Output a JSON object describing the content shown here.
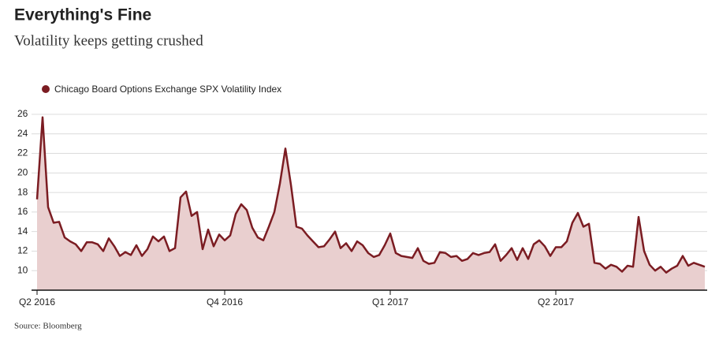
{
  "chart_data": {
    "type": "area",
    "title": "Everything's Fine",
    "subtitle": "Volatility keeps getting crushed",
    "source": "Source: Bloomberg",
    "legend": "top-left",
    "grid": true,
    "categories": [
      "Q2 2016",
      null,
      null,
      null,
      null,
      null,
      null,
      null,
      null,
      null,
      null,
      null,
      null,
      null,
      null,
      null,
      null,
      null,
      null,
      null,
      null,
      null,
      null,
      null,
      null,
      null,
      null,
      null,
      null,
      null,
      null,
      null,
      null,
      null,
      "Q4 2016",
      null,
      null,
      null,
      null,
      null,
      null,
      null,
      null,
      null,
      null,
      null,
      null,
      null,
      null,
      null,
      null,
      null,
      null,
      null,
      null,
      null,
      null,
      null,
      null,
      null,
      null,
      null,
      null,
      null,
      "Q1 2017",
      null,
      null,
      null,
      null,
      null,
      null,
      null,
      null,
      null,
      null,
      null,
      null,
      null,
      null,
      null,
      null,
      null,
      null,
      null,
      null,
      null,
      null,
      null,
      null,
      null,
      null,
      null,
      null,
      null,
      "Q2 2017",
      null,
      null,
      null,
      null,
      null,
      null,
      null,
      null,
      null,
      null,
      null,
      null,
      null,
      null,
      null,
      null,
      null,
      null,
      null,
      null,
      null,
      null,
      null,
      null,
      null,
      null,
      null
    ],
    "series": [
      {
        "name": "Chicago Board Options Exchange SPX Volatility Index",
        "color": "#7b1c22",
        "fill": "#e9cfcf",
        "values": [
          17.3,
          25.7,
          16.5,
          14.9,
          15.0,
          13.4,
          13.0,
          12.7,
          12.0,
          12.9,
          12.9,
          12.7,
          12.0,
          13.3,
          12.5,
          11.5,
          11.9,
          11.6,
          12.6,
          11.5,
          12.2,
          13.5,
          13.0,
          13.5,
          12.0,
          12.3,
          17.5,
          18.1,
          15.6,
          16.0,
          12.2,
          14.2,
          12.5,
          13.7,
          13.1,
          13.6,
          15.8,
          16.8,
          16.2,
          14.4,
          13.4,
          13.1,
          14.5,
          16.0,
          18.9,
          22.5,
          18.8,
          14.5,
          14.3,
          13.6,
          13.0,
          12.4,
          12.5,
          13.2,
          14.0,
          12.3,
          12.8,
          12.0,
          13.0,
          12.6,
          11.8,
          11.4,
          11.6,
          12.6,
          13.8,
          11.8,
          11.5,
          11.4,
          11.3,
          12.3,
          11.0,
          10.7,
          10.8,
          11.9,
          11.8,
          11.4,
          11.5,
          11.0,
          11.2,
          11.8,
          11.6,
          11.8,
          11.9,
          12.7,
          11.0,
          11.6,
          12.3,
          11.1,
          12.3,
          11.2,
          12.7,
          13.1,
          12.5,
          11.5,
          12.4,
          12.4,
          13.0,
          14.9,
          15.9,
          14.5,
          14.8,
          10.8,
          10.7,
          10.2,
          10.6,
          10.4,
          9.9,
          10.5,
          10.4,
          15.5,
          12.0,
          10.6,
          10.0,
          10.4,
          9.8,
          10.2,
          10.5,
          11.5,
          10.5,
          10.8,
          10.6,
          10.4
        ]
      }
    ],
    "ylim": [
      8,
      26
    ],
    "yticks": [
      10,
      12,
      14,
      16,
      18,
      20,
      22,
      24,
      26
    ]
  }
}
